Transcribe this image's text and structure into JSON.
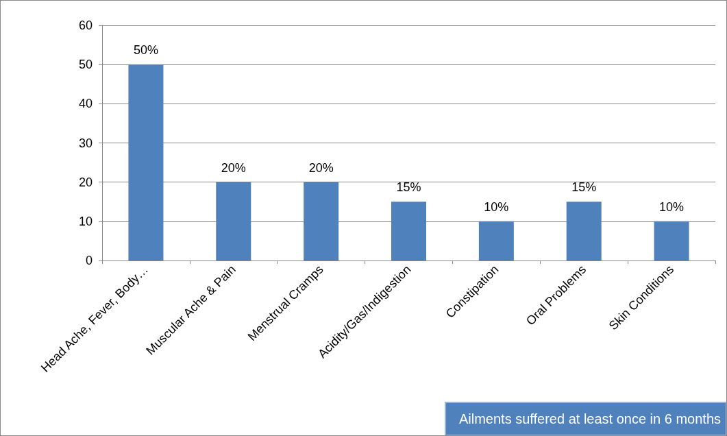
{
  "chart_data": {
    "type": "bar",
    "title": "Ailments suffered at least once in 6 months",
    "categories": [
      "Head Ache, Fever, Body…",
      "Muscular Ache & Pain",
      "Menstrual Cramps",
      "Acidity/Gas/Indigestion",
      "Constipation",
      "Oral Problems",
      "Skin Conditions"
    ],
    "values": [
      50,
      20,
      20,
      15,
      10,
      15,
      10
    ],
    "value_labels": [
      "50%",
      "20%",
      "20%",
      "15%",
      "10%",
      "15%",
      "10%"
    ],
    "color": "#4f81bd",
    "ylim": [
      0,
      60
    ],
    "yticks": [
      0,
      10,
      20,
      30,
      40,
      50,
      60
    ],
    "grid": "y"
  }
}
